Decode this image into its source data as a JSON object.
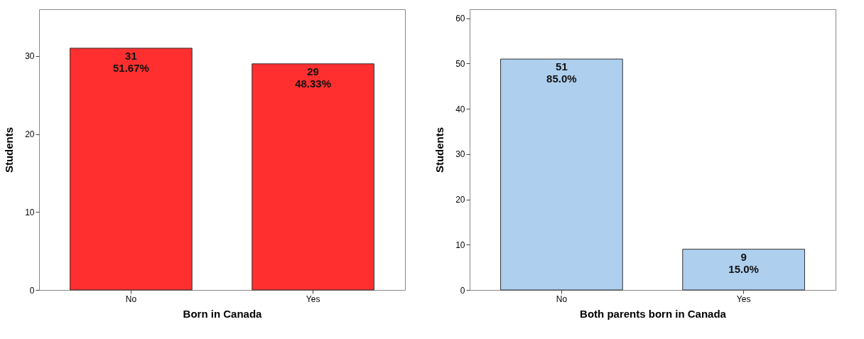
{
  "chart_data": [
    {
      "type": "bar",
      "xlabel": "Born in Canada",
      "ylabel": "Students",
      "categories": [
        "No",
        "Yes"
      ],
      "values": [
        31,
        29
      ],
      "color": "#ff2f2f",
      "ylim": [
        0,
        36
      ],
      "yticks": [
        0,
        10,
        20,
        30
      ],
      "grid": false,
      "value_labels": [
        "31\n51.67%",
        "29\n48.33%"
      ]
    },
    {
      "type": "bar",
      "xlabel": "Both parents born in Canada",
      "ylabel": "Students",
      "categories": [
        "No",
        "Yes"
      ],
      "values": [
        51,
        9
      ],
      "color": "#aecfee",
      "ylim": [
        0,
        62
      ],
      "yticks": [
        0,
        10,
        20,
        30,
        40,
        50,
        60
      ],
      "grid": false,
      "value_labels": [
        "51\n85.0%",
        "9\n15.0%"
      ]
    }
  ]
}
